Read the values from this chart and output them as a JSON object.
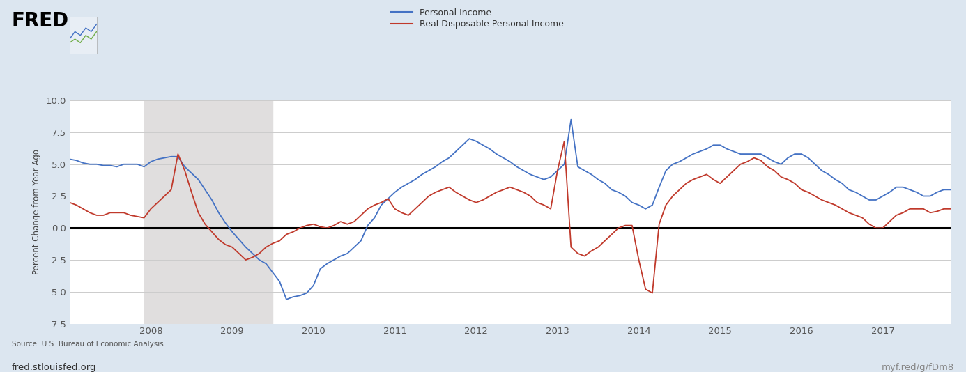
{
  "background_color": "#dce6f0",
  "plot_bg_color": "#ffffff",
  "recession_color": "#e0dede",
  "ylabel": "Percent Change from Year Ago",
  "ylim": [
    -7.5,
    10.0
  ],
  "yticks": [
    -7.5,
    -5.0,
    -2.5,
    0.0,
    2.5,
    5.0,
    7.5,
    10.0
  ],
  "legend_labels": [
    "Personal Income",
    "Real Disposable Personal Income"
  ],
  "legend_colors": [
    "#4472c4",
    "#c0392b"
  ],
  "source_text": "Source: U.S. Bureau of Economic Analysis",
  "url_text": "fred.stlouisfed.org",
  "url_right": "myf.red/g/fDm8",
  "recession_start_idx": 11,
  "recession_end_idx": 30,
  "personal_income_values": [
    5.4,
    5.3,
    5.1,
    5.0,
    5.0,
    4.9,
    4.9,
    4.8,
    5.0,
    5.0,
    5.0,
    4.8,
    5.2,
    5.4,
    5.5,
    5.6,
    5.6,
    4.8,
    4.3,
    3.8,
    3.0,
    2.2,
    1.2,
    0.4,
    -0.3,
    -0.9,
    -1.5,
    -2.0,
    -2.5,
    -2.8,
    -3.5,
    -4.2,
    -5.6,
    -5.4,
    -5.3,
    -5.1,
    -4.5,
    -3.2,
    -2.8,
    -2.5,
    -2.2,
    -2.0,
    -1.5,
    -1.0,
    0.2,
    0.8,
    1.8,
    2.3,
    2.8,
    3.2,
    3.5,
    3.8,
    4.2,
    4.5,
    4.8,
    5.2,
    5.5,
    6.0,
    6.5,
    7.0,
    6.8,
    6.5,
    6.2,
    5.8,
    5.5,
    5.2,
    4.8,
    4.5,
    4.2,
    4.0,
    3.8,
    4.0,
    4.5,
    5.0,
    8.5,
    4.8,
    4.5,
    4.2,
    3.8,
    3.5,
    3.0,
    2.8,
    2.5,
    2.0,
    1.8,
    1.5,
    1.8,
    3.2,
    4.5,
    5.0,
    5.2,
    5.5,
    5.8,
    6.0,
    6.2,
    6.5,
    6.5,
    6.2,
    6.0,
    5.8,
    5.8,
    5.8,
    5.8,
    5.5,
    5.2,
    5.0,
    5.5,
    5.8,
    5.8,
    5.5,
    5.0,
    4.5,
    4.2,
    3.8,
    3.5,
    3.0,
    2.8,
    2.5,
    2.2,
    2.2,
    2.5,
    2.8,
    3.2,
    3.2,
    3.0,
    2.8,
    2.5,
    2.5,
    2.8,
    3.0,
    3.0
  ],
  "real_disposable_income_values": [
    2.0,
    1.8,
    1.5,
    1.2,
    1.0,
    1.0,
    1.2,
    1.2,
    1.2,
    1.0,
    0.9,
    0.8,
    1.5,
    2.0,
    2.5,
    3.0,
    5.8,
    4.5,
    2.8,
    1.2,
    0.3,
    -0.3,
    -0.9,
    -1.3,
    -1.5,
    -2.0,
    -2.5,
    -2.3,
    -2.0,
    -1.5,
    -1.2,
    -1.0,
    -0.5,
    -0.3,
    0.0,
    0.2,
    0.3,
    0.1,
    0.0,
    0.2,
    0.5,
    0.3,
    0.5,
    1.0,
    1.5,
    1.8,
    2.0,
    2.3,
    1.5,
    1.2,
    1.0,
    1.5,
    2.0,
    2.5,
    2.8,
    3.0,
    3.2,
    2.8,
    2.5,
    2.2,
    2.0,
    2.2,
    2.5,
    2.8,
    3.0,
    3.2,
    3.0,
    2.8,
    2.5,
    2.0,
    1.8,
    1.5,
    4.5,
    6.8,
    -1.5,
    -2.0,
    -2.2,
    -1.8,
    -1.5,
    -1.0,
    -0.5,
    0.0,
    0.2,
    0.2,
    -2.5,
    -4.8,
    -5.1,
    0.3,
    1.8,
    2.5,
    3.0,
    3.5,
    3.8,
    4.0,
    4.2,
    3.8,
    3.5,
    4.0,
    4.5,
    5.0,
    5.2,
    5.5,
    5.3,
    4.8,
    4.5,
    4.0,
    3.8,
    3.5,
    3.0,
    2.8,
    2.5,
    2.2,
    2.0,
    1.8,
    1.5,
    1.2,
    1.0,
    0.8,
    0.3,
    0.0,
    0.0,
    0.5,
    1.0,
    1.2,
    1.5,
    1.5,
    1.5,
    1.2,
    1.3,
    1.5,
    1.5
  ],
  "xaxis_year_labels": [
    "2008",
    "2009",
    "2010",
    "2011",
    "2012",
    "2013",
    "2014",
    "2015",
    "2016",
    "2017"
  ],
  "xaxis_year_positions": [
    12,
    24,
    36,
    48,
    60,
    72,
    84,
    96,
    108,
    120
  ]
}
